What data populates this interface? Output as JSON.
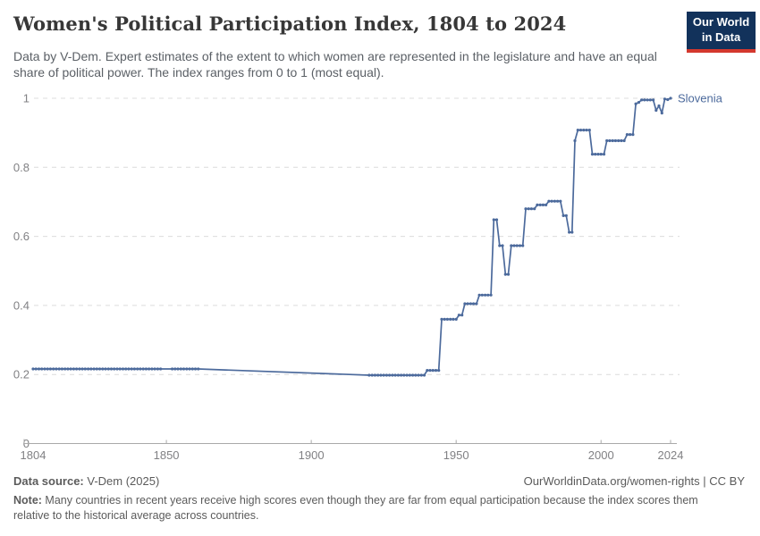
{
  "header": {
    "title": "Women's Political Participation Index, 1804 to 2024",
    "subtitle": "Data by V-Dem. Expert estimates of the extent to which women are represented in the legislature and have an equal share of political power. The index ranges from 0 to 1 (most equal).",
    "logo": {
      "line1": "Our World",
      "line2": "in Data",
      "bg_color": "#12325b",
      "accent_color": "#d4382e"
    }
  },
  "chart_data": {
    "type": "line",
    "title": "Women's Political Participation Index, 1804 to 2024",
    "subtitle": "Data by V-Dem. Expert estimates of the extent to which women are represented in the legislature and have an equal share of political power. The index ranges from 0 to 1 (most equal).",
    "xlabel": "",
    "ylabel": "",
    "xlim": [
      1804,
      2024
    ],
    "ylim": [
      0,
      1
    ],
    "x_ticks": [
      1804,
      1850,
      1900,
      1950,
      2000,
      2024
    ],
    "y_ticks": [
      0,
      0.2,
      0.4,
      0.6,
      0.8,
      1
    ],
    "grid": "horizontal-dashed",
    "legend_position": "line-end-label",
    "marker": "circle-every-year",
    "series": [
      {
        "name": "Slovenia",
        "color": "#4C6A9C",
        "runs_note": "each run is [start_year, end_year, index_value]; yearly data points; gaps between runs are drawn as straight unmarked connector lines (no data 1849-1851 and 1862-1919)",
        "runs": [
          [
            1804,
            1848,
            0.216
          ],
          [
            1852,
            1861,
            0.216
          ],
          [
            1920,
            1939,
            0.198
          ],
          [
            1940,
            1944,
            0.212
          ],
          [
            1945,
            1950,
            0.36
          ],
          [
            1951,
            1952,
            0.372
          ],
          [
            1953,
            1957,
            0.405
          ],
          [
            1958,
            1962,
            0.43
          ],
          [
            1963,
            1964,
            0.648
          ],
          [
            1965,
            1966,
            0.573
          ],
          [
            1967,
            1968,
            0.49
          ],
          [
            1969,
            1973,
            0.573
          ],
          [
            1974,
            1977,
            0.68
          ],
          [
            1978,
            1981,
            0.691
          ],
          [
            1982,
            1986,
            0.702
          ],
          [
            1987,
            1988,
            0.66
          ],
          [
            1989,
            1990,
            0.612
          ],
          [
            1991,
            1991,
            0.877
          ],
          [
            1992,
            1996,
            0.908
          ],
          [
            1997,
            2001,
            0.838
          ],
          [
            2002,
            2008,
            0.877
          ],
          [
            2009,
            2011,
            0.895
          ],
          [
            2012,
            2012,
            0.984
          ],
          [
            2013,
            2013,
            0.988
          ],
          [
            2014,
            2018,
            0.995
          ],
          [
            2019,
            2019,
            0.965
          ],
          [
            2020,
            2020,
            0.978
          ],
          [
            2021,
            2021,
            0.957
          ],
          [
            2022,
            2022,
            0.998
          ],
          [
            2023,
            2023,
            0.996
          ],
          [
            2024,
            2024,
            1.0
          ]
        ]
      }
    ]
  },
  "footer": {
    "source_label": "Data source:",
    "source_value": " V-Dem (2025)",
    "link": "OurWorldinData.org/women-rights | CC BY",
    "note_label": "Note:",
    "note_text": " Many countries in recent years receive high scores even though they are far from equal participation because the index scores them relative to the historical average across countries."
  }
}
